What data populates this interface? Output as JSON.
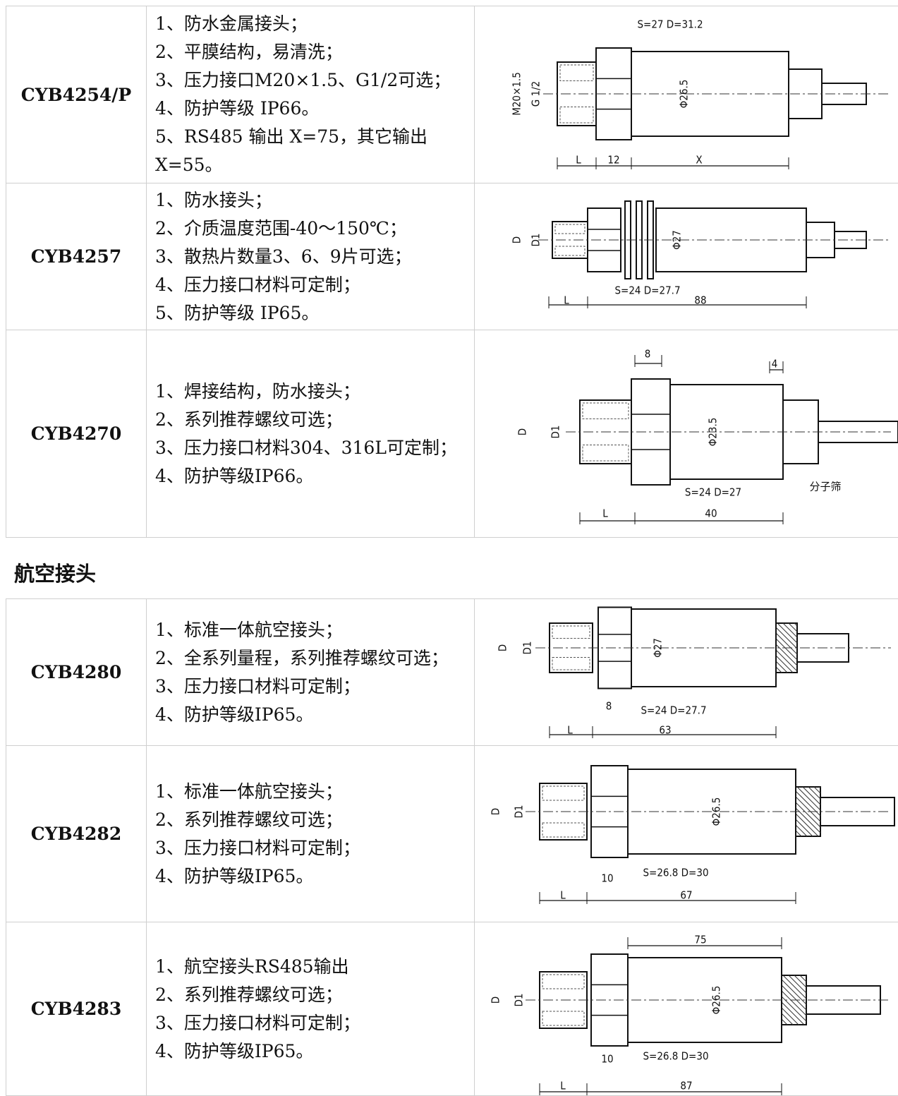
{
  "table1": {
    "rows": [
      {
        "model": "CYB4254/P",
        "features": [
          "1、防水金属接头；",
          "2、平膜结构，易清洗；",
          "3、压力接口M20×1.5、G1/2可选；",
          "4、防护等级 IP66。",
          "5、RS485 输出 X=75，其它输出 X=55。"
        ],
        "drawing_labels": [
          "S=27 D=31.2",
          "M20×1.5",
          "G 1/2",
          "Φ26.5",
          "L",
          "12",
          "X"
        ]
      },
      {
        "model": "CYB4257",
        "features": [
          "1、防水接头；",
          "2、介质温度范围-40～150℃；",
          "3、散热片数量3、6、9片可选；",
          "4、压力接口材料可定制；",
          "5、防护等级 IP65。"
        ],
        "drawing_labels": [
          "D",
          "D1",
          "Φ27",
          "S=24 D=27.7",
          "L",
          "88"
        ]
      },
      {
        "model": "CYB4270",
        "features": [
          "1、焊接结构，防水接头；",
          "2、系列推荐螺纹可选；",
          "3、压力接口材料304、316L可定制；",
          "4、防护等级IP66。"
        ],
        "drawing_labels": [
          "8",
          "4",
          "D",
          "D1",
          "Φ23.5",
          "S=24 D=27",
          "分子筛",
          "L",
          "40"
        ]
      }
    ]
  },
  "heading": "航空接头",
  "table2": {
    "rows": [
      {
        "model": "CYB4280",
        "features": [
          "1、标准一体航空接头；",
          "2、全系列量程，系列推荐螺纹可选；",
          "3、压力接口材料可定制；",
          "4、防护等级IP65。"
        ],
        "drawing_labels": [
          "D",
          "D1",
          "Φ27",
          "8",
          "S=24 D=27.7",
          "L",
          "63"
        ]
      },
      {
        "model": "CYB4282",
        "features": [
          "1、标准一体航空接头；",
          "2、系列推荐螺纹可选；",
          "3、压力接口材料可定制；",
          "4、防护等级IP65。"
        ],
        "drawing_labels": [
          "D",
          "D1",
          "Φ26.5",
          "10",
          "S=26.8 D=30",
          "L",
          "67"
        ]
      },
      {
        "model": "CYB4283",
        "features": [
          "1、航空接头RS485输出",
          "2、系列推荐螺纹可选；",
          "3、压力接口材料可定制；",
          "4、防护等级IP65。"
        ],
        "drawing_labels": [
          "75",
          "D",
          "D1",
          "Φ26.5",
          "10",
          "S=26.8 D=30",
          "L",
          "87"
        ]
      }
    ]
  }
}
